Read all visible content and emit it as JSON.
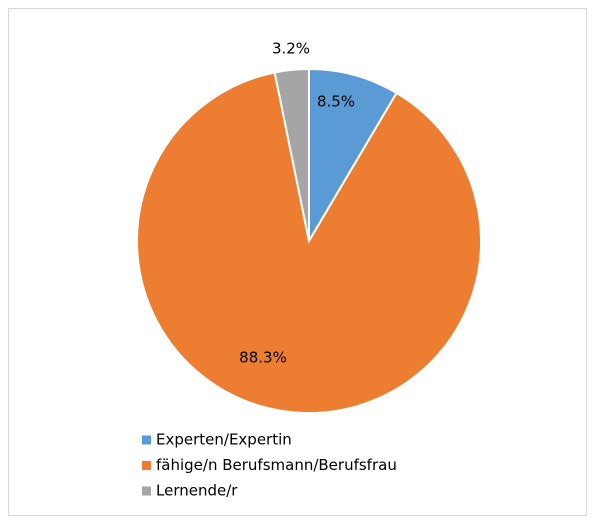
{
  "chart_data": {
    "type": "pie",
    "categories": [
      "Experten/Expertin",
      "fähige/n Berufsmann/Berufsfrau",
      "Lernende/r"
    ],
    "values": [
      8.5,
      88.3,
      3.2
    ],
    "value_labels": [
      "8.5%",
      "88.3%",
      "3.2%"
    ],
    "colors": [
      "#5b9bd5",
      "#ed7d31",
      "#a5a5a5"
    ],
    "legend": "bottom"
  }
}
